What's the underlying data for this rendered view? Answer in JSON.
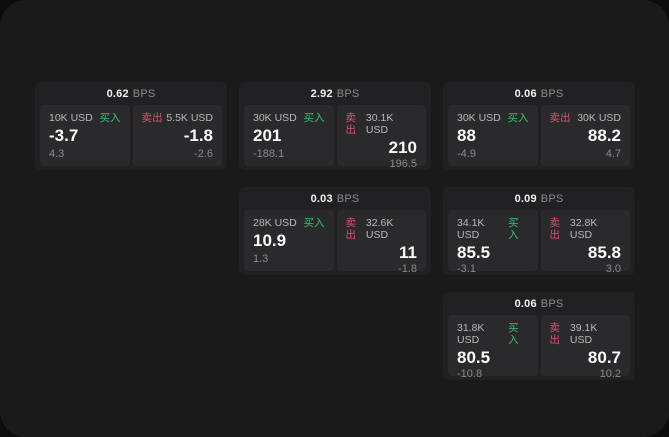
{
  "colors": {
    "buy": "#3dbd73",
    "sell": "#d25570",
    "page_background": "#0c0c0d",
    "panel_background": "#1a1a1b",
    "card_background": "#212123",
    "subpanel_background": "#2a2a2c"
  },
  "labels": {
    "bps_unit": "BPS",
    "buy": "买入",
    "sell": "卖出"
  },
  "cards": [
    {
      "bps_value": "0.62",
      "bps_unit": "BPS",
      "buy": {
        "amount": "10K USD",
        "side_label": "买入",
        "value": "-3.7",
        "delta": "4.3"
      },
      "sell": {
        "side_label": "卖出",
        "amount": "5.5K USD",
        "value": "-1.8",
        "delta": "-2.6"
      }
    },
    {
      "bps_value": "2.92",
      "bps_unit": "BPS",
      "buy": {
        "amount": "30K USD",
        "side_label": "买入",
        "value": "201",
        "delta": "-188.1"
      },
      "sell": {
        "side_label": "卖出",
        "amount": "30.1K USD",
        "value": "210",
        "delta": "196.5"
      }
    },
    {
      "bps_value": "0.06",
      "bps_unit": "BPS",
      "buy": {
        "amount": "30K USD",
        "side_label": "买入",
        "value": "88",
        "delta": "-4.9"
      },
      "sell": {
        "side_label": "卖出",
        "amount": "30K USD",
        "value": "88.2",
        "delta": "4.7"
      }
    },
    {
      "bps_value": "0.03",
      "bps_unit": "BPS",
      "buy": {
        "amount": "28K USD",
        "side_label": "买入",
        "value": "10.9",
        "delta": "1.3"
      },
      "sell": {
        "side_label": "卖出",
        "amount": "32.6K USD",
        "value": "11",
        "delta": "-1.8"
      }
    },
    {
      "bps_value": "0.09",
      "bps_unit": "BPS",
      "buy": {
        "amount": "34.1K USD",
        "side_label": "买入",
        "value": "85.5",
        "delta": "-3.1"
      },
      "sell": {
        "side_label": "卖出",
        "amount": "32.8K USD",
        "value": "85.8",
        "delta": "3.0"
      }
    },
    {
      "bps_value": "0.06",
      "bps_unit": "BPS",
      "buy": {
        "amount": "31.8K USD",
        "side_label": "买入",
        "value": "80.5",
        "delta": "-10.8"
      },
      "sell": {
        "side_label": "卖出",
        "amount": "39.1K USD",
        "value": "80.7",
        "delta": "10.2"
      }
    }
  ]
}
